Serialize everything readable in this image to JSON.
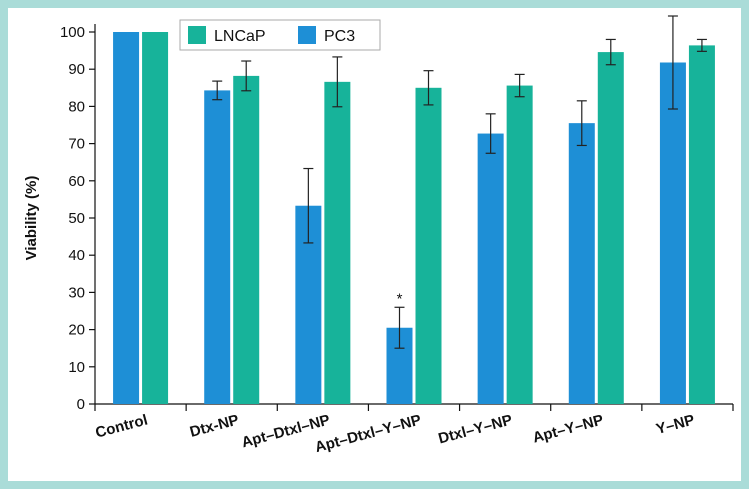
{
  "chart_data": {
    "type": "bar",
    "title": "",
    "xlabel": "",
    "ylabel": "Viability (%)",
    "ylim": [
      0,
      100
    ],
    "yticks": [
      0,
      10,
      20,
      30,
      40,
      50,
      60,
      70,
      80,
      90,
      100
    ],
    "categories": [
      "Control",
      "Dtx-NP",
      "Apt–Dtxl–NP",
      "Apt–Dtxl–Y–NP",
      "Dtxl–Y–NP",
      "Apt–Y–NP",
      "Y–NP"
    ],
    "series": [
      {
        "name": "PC3",
        "color": "#1e8fd6",
        "values": [
          100,
          84.3,
          53.3,
          20.5,
          72.7,
          75.5,
          91.8
        ],
        "errors": [
          0,
          2.5,
          10,
          5.5,
          5.3,
          6,
          12.5
        ]
      },
      {
        "name": "LNCaP",
        "color": "#17b39a",
        "values": [
          100,
          88.2,
          86.6,
          85,
          85.6,
          94.6,
          96.4
        ],
        "errors": [
          0,
          4,
          6.7,
          4.6,
          3,
          3.4,
          1.6
        ]
      }
    ],
    "annotations": [
      {
        "category_index": 3,
        "series": "PC3",
        "text": "*"
      }
    ],
    "legend": {
      "position": "top-left",
      "order": [
        "LNCaP",
        "PC3"
      ]
    },
    "grid": false
  }
}
